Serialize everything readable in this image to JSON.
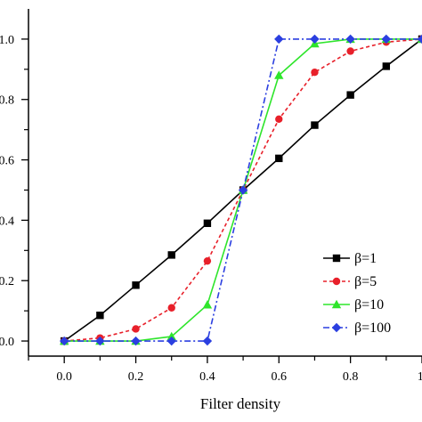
{
  "chart_data": {
    "type": "line",
    "title": "",
    "xlabel": "Filter density",
    "ylabel": "",
    "xlim": [
      -0.1,
      1.0
    ],
    "ylim": [
      -0.05,
      1.1
    ],
    "xticks": [
      0.0,
      0.2,
      0.4,
      0.6,
      0.8,
      1.0
    ],
    "xtick_labels": [
      "0.0",
      "0.2",
      "0.4",
      "0.6",
      "0.8",
      "1."
    ],
    "yticks": [
      0.0,
      0.2,
      0.4,
      0.6,
      0.8,
      1.0
    ],
    "ytick_labels": [
      "0.0",
      "0.2",
      "0.4",
      "0.6",
      "0.8",
      "1.0"
    ],
    "grid": false,
    "legend_position": "bottom-right",
    "x": [
      0.0,
      0.1,
      0.2,
      0.3,
      0.4,
      0.5,
      0.6,
      0.7,
      0.8,
      0.9,
      1.0
    ],
    "series": [
      {
        "name": "β=1",
        "color": "#000000",
        "marker": "square",
        "line_style": "solid",
        "values": [
          0.0,
          0.085,
          0.185,
          0.285,
          0.39,
          0.5,
          0.605,
          0.715,
          0.815,
          0.91,
          1.0
        ]
      },
      {
        "name": "β=5",
        "color": "#e8202a",
        "marker": "circle",
        "line_style": "dashed",
        "values": [
          0.0,
          0.01,
          0.04,
          0.11,
          0.265,
          0.5,
          0.735,
          0.89,
          0.96,
          0.99,
          1.0
        ]
      },
      {
        "name": "β=10",
        "color": "#2ee52b",
        "marker": "triangle",
        "line_style": "solid",
        "values": [
          0.0,
          0.0,
          0.0,
          0.015,
          0.12,
          0.5,
          0.88,
          0.985,
          1.0,
          1.0,
          1.0
        ]
      },
      {
        "name": "β=100",
        "color": "#2b3fe0",
        "marker": "diamond",
        "line_style": "dashdot",
        "values": [
          0.0,
          0.0,
          0.0,
          0.0,
          0.0,
          0.5,
          1.0,
          1.0,
          1.0,
          1.0,
          1.0
        ]
      }
    ]
  }
}
